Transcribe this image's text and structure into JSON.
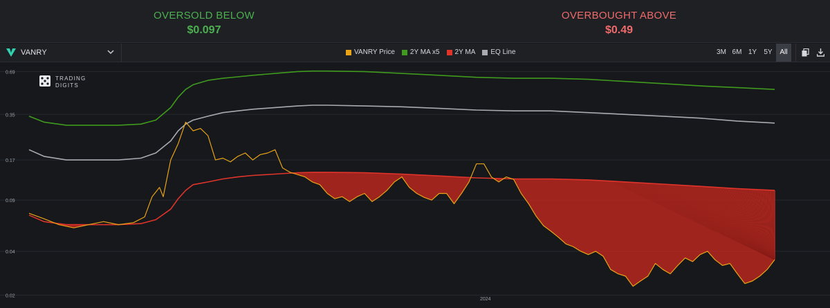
{
  "header": {
    "oversold_label": "OVERSOLD BELOW",
    "oversold_value": "$0.097",
    "overbought_label": "OVERBOUGHT ABOVE",
    "overbought_value": "$0.49"
  },
  "colors": {
    "price": "#e8a317",
    "ma_x5": "#3f9a1d",
    "ma": "#e0342b",
    "eq": "#a8aab0",
    "oversold": "#4caf50",
    "overbought": "#ef6a6a"
  },
  "toolbar": {
    "asset": "VANRY",
    "legend": [
      {
        "label": "VANRY Price",
        "color": "#e8a317"
      },
      {
        "label": "2Y MA x5",
        "color": "#3f9a1d"
      },
      {
        "label": "2Y MA",
        "color": "#e0342b"
      },
      {
        "label": "EQ Line",
        "color": "#a8aab0"
      }
    ],
    "ranges": [
      "3M",
      "6M",
      "1Y",
      "5Y",
      "All"
    ],
    "active_range": "All",
    "icons": [
      "copy-icon",
      "download-icon"
    ]
  },
  "watermark": {
    "line1": "TRADING",
    "line2": "DIGITS"
  },
  "chart_data": {
    "type": "line",
    "y_scale": "log",
    "ylim": [
      0.019,
      0.74
    ],
    "y_ticks": [
      0.02,
      0.04,
      0.09,
      0.17,
      0.35,
      0.69
    ],
    "y_tick_labels": [
      "0.02",
      "0.04",
      "0.09",
      "0.17",
      "0.35",
      "0.69"
    ],
    "x_tick_labels": [
      {
        "label": "2024",
        "x": 0.612
      }
    ],
    "grid": true,
    "title": "",
    "xlabel": "",
    "ylabel": "",
    "fill_below_ma": true,
    "series": [
      {
        "name": "VANRY Price",
        "color": "#e8a317",
        "x": [
          0,
          0.02,
          0.04,
          0.06,
          0.08,
          0.1,
          0.12,
          0.14,
          0.155,
          0.165,
          0.175,
          0.18,
          0.19,
          0.2,
          0.21,
          0.22,
          0.23,
          0.24,
          0.25,
          0.26,
          0.27,
          0.28,
          0.29,
          0.3,
          0.31,
          0.32,
          0.33,
          0.34,
          0.35,
          0.36,
          0.37,
          0.38,
          0.39,
          0.4,
          0.41,
          0.42,
          0.43,
          0.44,
          0.45,
          0.46,
          0.47,
          0.48,
          0.49,
          0.5,
          0.51,
          0.52,
          0.53,
          0.54,
          0.55,
          0.56,
          0.57,
          0.58,
          0.59,
          0.6,
          0.61,
          0.62,
          0.63,
          0.64,
          0.65,
          0.66,
          0.67,
          0.68,
          0.69,
          0.7,
          0.71,
          0.72,
          0.73,
          0.74,
          0.75,
          0.76,
          0.77,
          0.78,
          0.79,
          0.8,
          0.81,
          0.82,
          0.83,
          0.84,
          0.85,
          0.86,
          0.87,
          0.88,
          0.89,
          0.9,
          0.91,
          0.92,
          0.93,
          0.94,
          0.95,
          0.96,
          0.97,
          0.98,
          0.99,
          1.0
        ],
        "y": [
          0.073,
          0.067,
          0.061,
          0.058,
          0.061,
          0.064,
          0.061,
          0.063,
          0.069,
          0.095,
          0.11,
          0.095,
          0.17,
          0.22,
          0.31,
          0.27,
          0.28,
          0.25,
          0.17,
          0.175,
          0.165,
          0.18,
          0.19,
          0.17,
          0.185,
          0.19,
          0.2,
          0.15,
          0.14,
          0.135,
          0.13,
          0.12,
          0.115,
          0.1,
          0.092,
          0.095,
          0.088,
          0.095,
          0.1,
          0.088,
          0.095,
          0.105,
          0.12,
          0.13,
          0.11,
          0.1,
          0.094,
          0.09,
          0.1,
          0.1,
          0.085,
          0.1,
          0.12,
          0.16,
          0.16,
          0.13,
          0.12,
          0.13,
          0.125,
          0.1,
          0.085,
          0.07,
          0.06,
          0.055,
          0.05,
          0.045,
          0.043,
          0.04,
          0.038,
          0.04,
          0.037,
          0.03,
          0.028,
          0.027,
          0.023,
          0.025,
          0.027,
          0.033,
          0.03,
          0.028,
          0.032,
          0.036,
          0.034,
          0.038,
          0.04,
          0.035,
          0.032,
          0.033,
          0.028,
          0.024,
          0.025,
          0.027,
          0.03,
          0.035
        ]
      },
      {
        "name": "2Y MA x5",
        "color": "#3f9a1d",
        "x": [
          0,
          0.02,
          0.05,
          0.08,
          0.12,
          0.15,
          0.17,
          0.19,
          0.2,
          0.21,
          0.22,
          0.24,
          0.26,
          0.28,
          0.3,
          0.33,
          0.36,
          0.38,
          0.4,
          0.45,
          0.5,
          0.55,
          0.6,
          0.65,
          0.7,
          0.75,
          0.8,
          0.85,
          0.9,
          0.95,
          1.0
        ],
        "y": [
          0.34,
          0.31,
          0.295,
          0.295,
          0.295,
          0.3,
          0.32,
          0.39,
          0.46,
          0.52,
          0.56,
          0.6,
          0.62,
          0.635,
          0.65,
          0.67,
          0.69,
          0.695,
          0.695,
          0.69,
          0.67,
          0.65,
          0.63,
          0.62,
          0.62,
          0.61,
          0.59,
          0.57,
          0.55,
          0.535,
          0.52
        ]
      },
      {
        "name": "2Y MA",
        "color": "#e0342b",
        "x": [
          0,
          0.02,
          0.05,
          0.08,
          0.12,
          0.15,
          0.17,
          0.19,
          0.2,
          0.21,
          0.22,
          0.24,
          0.26,
          0.28,
          0.3,
          0.33,
          0.36,
          0.38,
          0.4,
          0.45,
          0.5,
          0.55,
          0.6,
          0.65,
          0.7,
          0.75,
          0.8,
          0.85,
          0.9,
          0.95,
          1.0
        ],
        "y": [
          0.071,
          0.064,
          0.061,
          0.061,
          0.061,
          0.062,
          0.066,
          0.078,
          0.092,
          0.105,
          0.115,
          0.12,
          0.126,
          0.13,
          0.133,
          0.136,
          0.139,
          0.14,
          0.14,
          0.139,
          0.136,
          0.132,
          0.128,
          0.126,
          0.126,
          0.124,
          0.12,
          0.116,
          0.112,
          0.108,
          0.105
        ]
      },
      {
        "name": "EQ Line",
        "color": "#a8aab0",
        "x": [
          0,
          0.02,
          0.05,
          0.08,
          0.12,
          0.15,
          0.17,
          0.19,
          0.2,
          0.21,
          0.22,
          0.24,
          0.26,
          0.28,
          0.3,
          0.33,
          0.36,
          0.38,
          0.4,
          0.45,
          0.5,
          0.55,
          0.6,
          0.65,
          0.7,
          0.75,
          0.8,
          0.85,
          0.9,
          0.95,
          1.0
        ],
        "y": [
          0.2,
          0.18,
          0.17,
          0.17,
          0.17,
          0.175,
          0.19,
          0.23,
          0.27,
          0.3,
          0.32,
          0.34,
          0.36,
          0.37,
          0.38,
          0.39,
          0.4,
          0.405,
          0.405,
          0.4,
          0.395,
          0.385,
          0.375,
          0.37,
          0.37,
          0.36,
          0.35,
          0.34,
          0.33,
          0.315,
          0.305
        ]
      }
    ]
  }
}
